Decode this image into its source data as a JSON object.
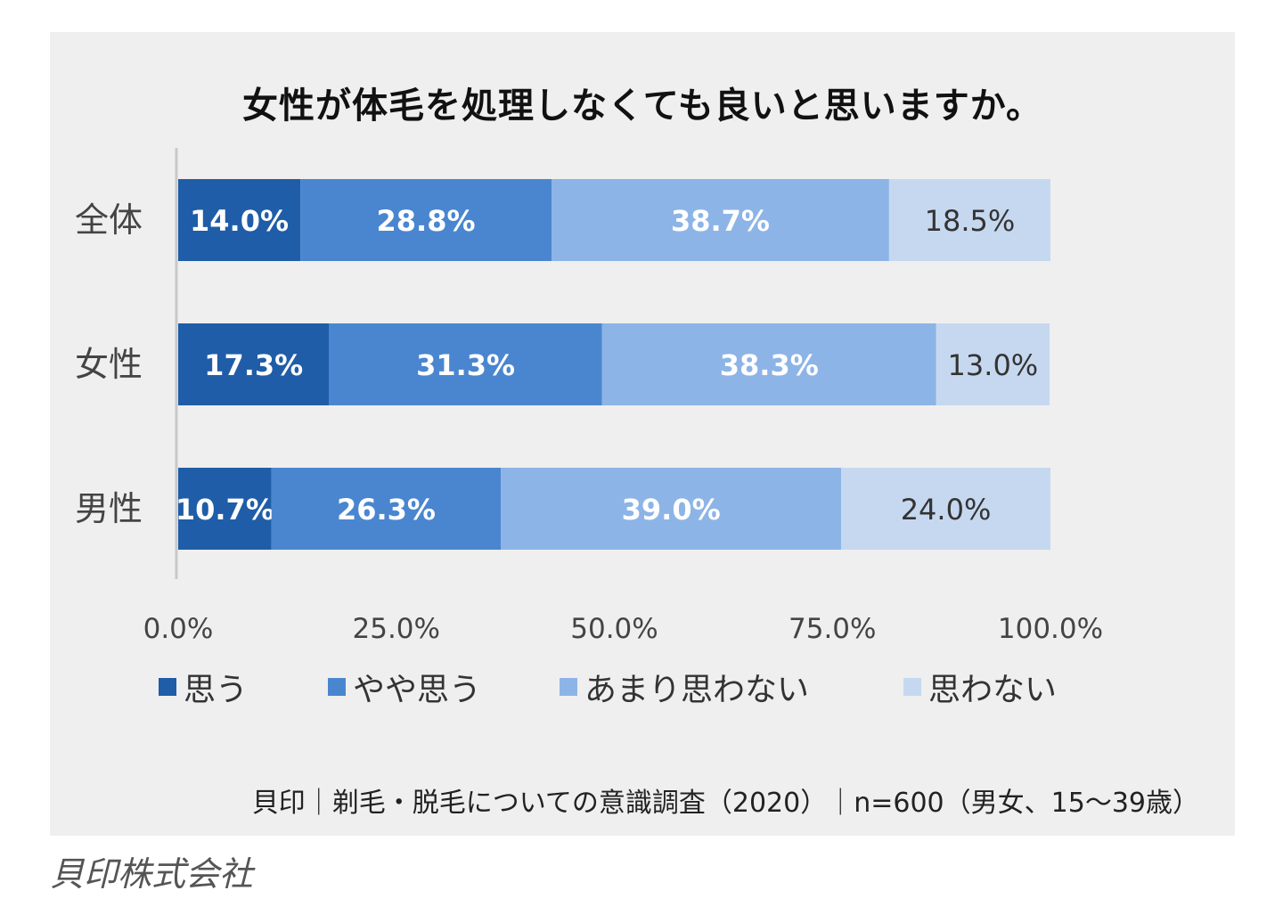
{
  "chart_data": {
    "type": "bar",
    "orientation": "horizontal",
    "stacked": true,
    "title": "女性が体毛を処理しなくても良いと思いますか。",
    "categories": [
      "全体",
      "女性",
      "男性"
    ],
    "series": [
      {
        "name": "思う",
        "color": "#1f5da8",
        "values": [
          14.0,
          17.3,
          10.7
        ],
        "labels": [
          "14.0%",
          "17.3%",
          "10.7%"
        ],
        "label_color": "#ffffff"
      },
      {
        "name": "やや思う",
        "color": "#4a86d0",
        "values": [
          28.8,
          31.3,
          26.3
        ],
        "labels": [
          "28.8%",
          "31.3%",
          "26.3%"
        ],
        "label_color": "#ffffff"
      },
      {
        "name": "あまり思わない",
        "color": "#8db4e6",
        "values": [
          38.7,
          38.3,
          39.0
        ],
        "labels": [
          "38.7%",
          "38.3%",
          "39.0%"
        ],
        "label_color": "#ffffff"
      },
      {
        "name": "思わない",
        "color": "#c6d8f0",
        "values": [
          18.5,
          13.0,
          24.0
        ],
        "labels": [
          "18.5%",
          "13.0%",
          "24.0%"
        ],
        "label_color": "#333333"
      }
    ],
    "xlim": [
      0,
      100
    ],
    "xticks": [
      0,
      25,
      50,
      75,
      100
    ],
    "xtick_labels": [
      "0.0%",
      "25.0%",
      "50.0%",
      "75.0%",
      "100.0%"
    ],
    "grid": false,
    "legend_position": "bottom"
  },
  "source_note": "貝印｜剃毛・脱毛についての意識調査（2020）｜n=600（男女、15〜39歳）",
  "credit": "貝印株式会社"
}
